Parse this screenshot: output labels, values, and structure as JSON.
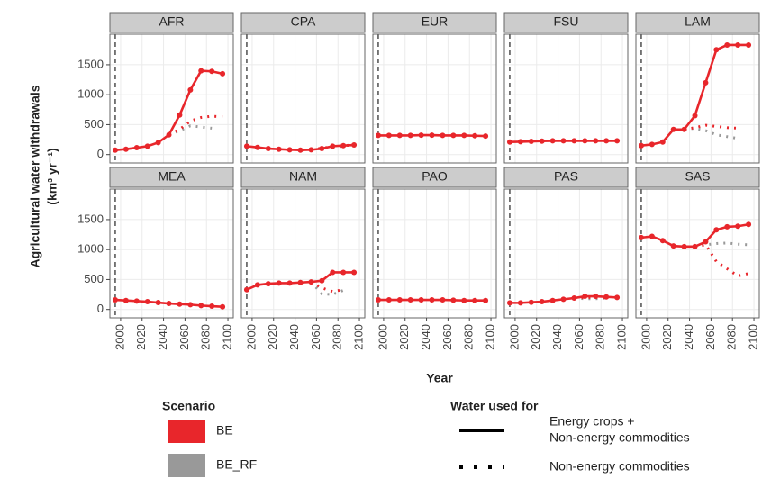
{
  "chart_data": {
    "type": "line",
    "facet": true,
    "ylabel": [
      "Agricultural water withdrawals",
      "(km³ yr⁻¹)"
    ],
    "xlabel": "Year",
    "xlim": [
      1990,
      2105
    ],
    "ylim": [
      -140,
      2010
    ],
    "xticks": [
      2000,
      2020,
      2040,
      2060,
      2080,
      2100
    ],
    "yticks": [
      0,
      500,
      1000,
      1500
    ],
    "vline": 1995,
    "grid": true,
    "x": [
      1995,
      2005,
      2015,
      2025,
      2035,
      2045,
      2055,
      2065,
      2075,
      2085,
      2095
    ],
    "panels": [
      {
        "title": "AFR",
        "series": [
          {
            "color": "#e8262b",
            "dash": "solid",
            "points": true,
            "values": [
              75,
              90,
              115,
              140,
              200,
              330,
              660,
              1080,
              1400,
              1390,
              1350
            ]
          },
          {
            "color": "#999999",
            "dash": "dotted",
            "points": false,
            "values": [
              null,
              null,
              null,
              null,
              null,
              330,
              400,
              480,
              460,
              440,
              null
            ]
          },
          {
            "color": "#e8262b",
            "dash": "dotted",
            "points": false,
            "values": [
              null,
              null,
              null,
              null,
              null,
              330,
              420,
              560,
              620,
              640,
              630
            ]
          }
        ]
      },
      {
        "title": "CPA",
        "series": [
          {
            "color": "#e8262b",
            "dash": "solid",
            "points": true,
            "values": [
              140,
              120,
              100,
              90,
              80,
              75,
              80,
              100,
              140,
              150,
              160
            ]
          },
          {
            "color": "#999999",
            "dash": "dotted",
            "points": false,
            "values": [
              null,
              null,
              null,
              null,
              null,
              null,
              80,
              100,
              120,
              140,
              null
            ]
          },
          {
            "color": "#e8262b",
            "dash": "dotted",
            "points": false,
            "values": [
              null,
              null,
              null,
              null,
              null,
              null,
              80,
              110,
              130,
              150,
              160
            ]
          }
        ]
      },
      {
        "title": "EUR",
        "series": [
          {
            "color": "#e8262b",
            "dash": "solid",
            "points": true,
            "values": [
              320,
              320,
              320,
              320,
              325,
              325,
              320,
              320,
              320,
              315,
              310
            ]
          }
        ]
      },
      {
        "title": "FSU",
        "series": [
          {
            "color": "#e8262b",
            "dash": "solid",
            "points": true,
            "values": [
              210,
              215,
              220,
              225,
              230,
              230,
              230,
              230,
              230,
              230,
              230
            ]
          }
        ]
      },
      {
        "title": "LAM",
        "series": [
          {
            "color": "#e8262b",
            "dash": "solid",
            "points": true,
            "values": [
              150,
              170,
              210,
              420,
              420,
              650,
              1200,
              1750,
              1830,
              1830,
              1830
            ]
          },
          {
            "color": "#999999",
            "dash": "dotted",
            "points": false,
            "values": [
              null,
              null,
              null,
              null,
              420,
              440,
              400,
              330,
              300,
              270,
              null
            ]
          },
          {
            "color": "#e8262b",
            "dash": "dotted",
            "points": false,
            "values": [
              null,
              null,
              null,
              null,
              420,
              450,
              490,
              470,
              450,
              440,
              null
            ]
          }
        ]
      },
      {
        "title": "MEA",
        "series": [
          {
            "color": "#e8262b",
            "dash": "solid",
            "points": true,
            "values": [
              160,
              150,
              140,
              130,
              115,
              100,
              90,
              80,
              65,
              55,
              45
            ]
          }
        ]
      },
      {
        "title": "NAM",
        "series": [
          {
            "color": "#e8262b",
            "dash": "solid",
            "points": true,
            "values": [
              330,
              410,
              430,
              440,
              440,
              450,
              460,
              480,
              620,
              620,
              620
            ]
          },
          {
            "color": "#999999",
            "dash": "dotted",
            "points": false,
            "values": [
              null,
              null,
              null,
              null,
              null,
              null,
              460,
              260,
              250,
              320,
              null
            ]
          },
          {
            "color": "#e8262b",
            "dash": "dotted",
            "points": false,
            "values": [
              null,
              null,
              null,
              null,
              null,
              null,
              460,
              360,
              300,
              330,
              null
            ]
          }
        ]
      },
      {
        "title": "PAO",
        "series": [
          {
            "color": "#e8262b",
            "dash": "solid",
            "points": true,
            "values": [
              160,
              160,
              160,
              160,
              160,
              160,
              160,
              155,
              150,
              150,
              150
            ]
          }
        ]
      },
      {
        "title": "PAS",
        "series": [
          {
            "color": "#e8262b",
            "dash": "solid",
            "points": true,
            "values": [
              110,
              110,
              120,
              130,
              150,
              170,
              190,
              220,
              220,
              210,
              200
            ]
          },
          {
            "color": "#999999",
            "dash": "dotted",
            "points": false,
            "values": [
              null,
              null,
              null,
              null,
              null,
              null,
              190,
              180,
              180,
              190,
              null
            ]
          },
          {
            "color": "#e8262b",
            "dash": "dotted",
            "points": false,
            "values": [
              null,
              null,
              null,
              null,
              null,
              null,
              190,
              200,
              200,
              200,
              null
            ]
          }
        ]
      },
      {
        "title": "SAS",
        "series": [
          {
            "color": "#e8262b",
            "dash": "solid",
            "points": true,
            "values": [
              1200,
              1220,
              1150,
              1060,
              1050,
              1050,
              1130,
              1330,
              1380,
              1390,
              1420
            ]
          },
          {
            "color": "#999999",
            "dash": "dotted",
            "points": false,
            "values": [
              null,
              null,
              null,
              null,
              null,
              1050,
              1080,
              1100,
              1110,
              1090,
              1080
            ]
          },
          {
            "color": "#e8262b",
            "dash": "dotted",
            "points": false,
            "values": [
              null,
              null,
              null,
              null,
              null,
              1050,
              1080,
              800,
              680,
              560,
              600
            ]
          }
        ]
      }
    ],
    "legend": {
      "scenario_title": "Scenario",
      "scenarios": [
        {
          "name": "BE",
          "color": "#e8262b"
        },
        {
          "name": "BE_RF",
          "color": "#999999"
        }
      ],
      "use_title": "Water used for",
      "uses": [
        {
          "label": [
            "Energy crops +",
            "Non-energy commodities"
          ],
          "dash": "solid"
        },
        {
          "label": [
            "Non-energy commodities"
          ],
          "dash": "dotted"
        }
      ]
    }
  }
}
